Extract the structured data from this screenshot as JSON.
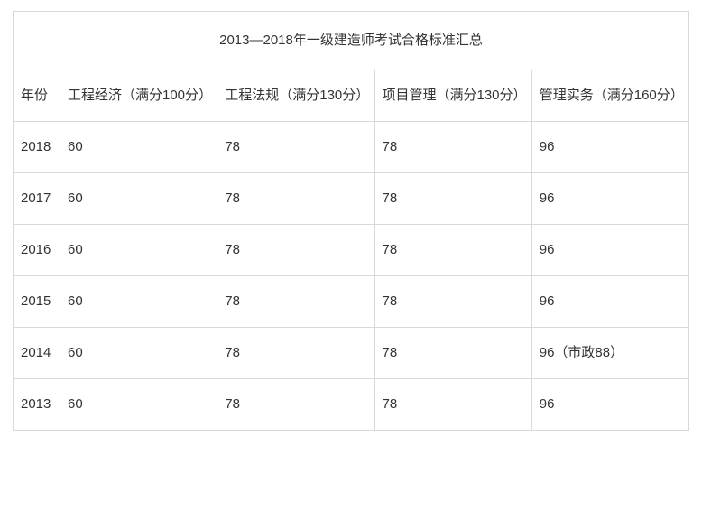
{
  "table": {
    "title": "2013—2018年一级建造师考试合格标准汇总",
    "columns": [
      "年份",
      "工程经济（满分100分）",
      "工程法规（满分130分）",
      "项目管理（满分130分）",
      "管理实务（满分160分）"
    ],
    "rows": [
      {
        "year": "2018",
        "c1": "60",
        "c2": "78",
        "c3": "78",
        "c4": "96"
      },
      {
        "year": "2017",
        "c1": "60",
        "c2": "78",
        "c3": "78",
        "c4": "96"
      },
      {
        "year": "2016",
        "c1": "60",
        "c2": "78",
        "c3": "78",
        "c4": "96"
      },
      {
        "year": "2015",
        "c1": "60",
        "c2": "78",
        "c3": "78",
        "c4": "96"
      },
      {
        "year": "2014",
        "c1": "60",
        "c2": "78",
        "c3": "78",
        "c4": "96（市政88）"
      },
      {
        "year": "2013",
        "c1": "60",
        "c2": "78",
        "c3": "78",
        "c4": "96"
      }
    ],
    "border_color": "#d9d9d9",
    "text_color": "#333333",
    "background_color": "#ffffff",
    "font_size": 15
  }
}
